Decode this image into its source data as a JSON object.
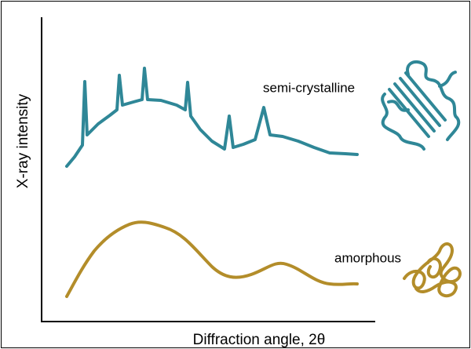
{
  "axes": {
    "y_label": "X-ray intensity",
    "x_label": "Diffraction angle, 2θ"
  },
  "labels": {
    "semi_crystalline": "semi-crystalline",
    "amorphous": "amorphous"
  }
}
